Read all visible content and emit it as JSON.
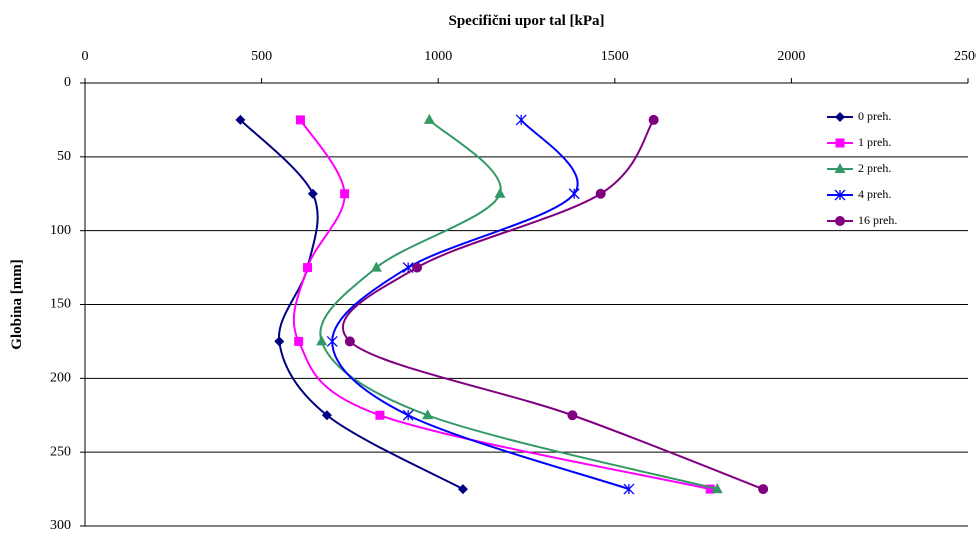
{
  "chart_data": {
    "type": "line",
    "title": "",
    "xlabel": "Specifični upor tal [kPa]",
    "ylabel": "Globina [mm]",
    "xlim": [
      0,
      2500
    ],
    "ylim": [
      0,
      300
    ],
    "x_ticks": [
      0,
      500,
      1000,
      1500,
      2000,
      2500
    ],
    "y_ticks": [
      0,
      50,
      100,
      150,
      200,
      250,
      300
    ],
    "x_axis_position": "top",
    "y_axis_inverted": true,
    "grid": "horizontal",
    "legend_position": "right",
    "smooth": true,
    "depths": [
      25,
      75,
      125,
      175,
      225,
      275
    ],
    "series": [
      {
        "name": "0 preh.",
        "color": "#000080",
        "marker": "diamond",
        "values": [
          440,
          645,
          630,
          550,
          685,
          1070
        ]
      },
      {
        "name": "1 preh.",
        "color": "#ff00ff",
        "marker": "square",
        "values": [
          610,
          735,
          630,
          605,
          835,
          1770
        ]
      },
      {
        "name": "2 preh.",
        "color": "#339966",
        "marker": "triangle",
        "values": [
          975,
          1175,
          825,
          670,
          970,
          1790
        ]
      },
      {
        "name": "4 preh.",
        "color": "#0000ff",
        "marker": "asterisk",
        "values": [
          1235,
          1385,
          915,
          700,
          915,
          1540
        ]
      },
      {
        "name": "16 preh.",
        "color": "#800080",
        "marker": "circle",
        "values": [
          1610,
          1460,
          940,
          750,
          1380,
          1920
        ]
      }
    ]
  }
}
